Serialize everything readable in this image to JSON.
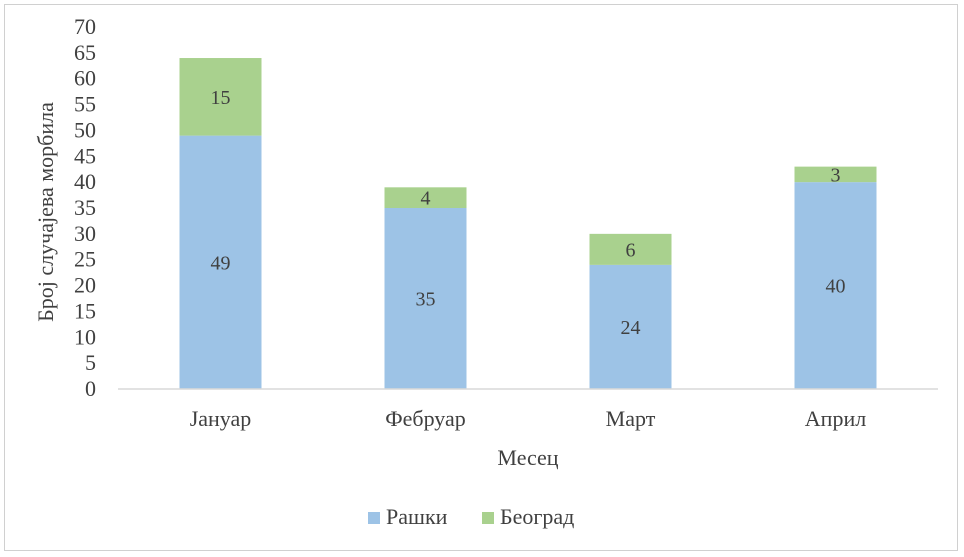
{
  "chart_data": {
    "type": "bar",
    "stacked": true,
    "categories": [
      "Јануар",
      "Фебруар",
      "Март",
      "Април"
    ],
    "series": [
      {
        "name": "Рашки",
        "values": [
          49,
          35,
          24,
          40
        ],
        "color": "#9dc3e6"
      },
      {
        "name": "Београд",
        "values": [
          15,
          4,
          6,
          3
        ],
        "color": "#a9d18e"
      }
    ],
    "xlabel": "Месец",
    "ylabel": "Број случајева морбила",
    "ylim": [
      0,
      70
    ],
    "yticks": [
      0,
      5,
      10,
      15,
      20,
      25,
      30,
      35,
      40,
      45,
      50,
      55,
      60,
      65,
      70
    ],
    "grid": false,
    "legend_position": "bottom"
  }
}
